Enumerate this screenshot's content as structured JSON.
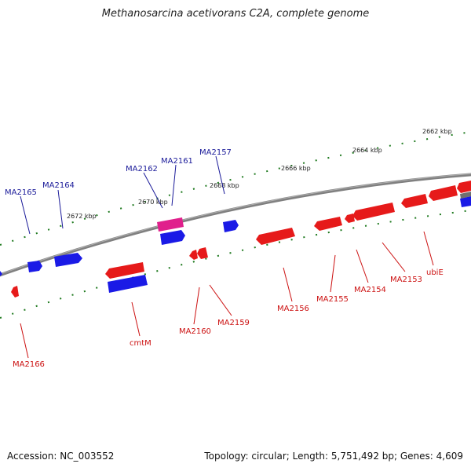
{
  "title": "Methanosarcina acetivorans C2A, complete genome",
  "accession": "Accession: NC_003552",
  "summary": "Topology: circular; Length: 5,751,492 bp; Genes: 4,609",
  "colors": {
    "backbone": "#808080",
    "ticks": "#1f7a1f",
    "forward_gene": "#1a1ae6",
    "reverse_gene": "#e61a1a",
    "highlight_gene": "#e0208c",
    "forward_label": "#1a1a99",
    "reverse_label": "#cc1111"
  },
  "scale_labels": [
    "2662 kbp",
    "2664 kbp",
    "2666 kbp",
    "2668 kbp",
    "2670 kbp",
    "2672 kbp"
  ],
  "forward_labels": [
    "MA2157",
    "MA2161",
    "MA2162",
    "MA2164",
    "MA2165"
  ],
  "reverse_labels": [
    "ubiE",
    "MA2153",
    "MA2154",
    "MA2155",
    "MA2156",
    "MA2159",
    "MA2160",
    "cmtM",
    "MA2166"
  ]
}
